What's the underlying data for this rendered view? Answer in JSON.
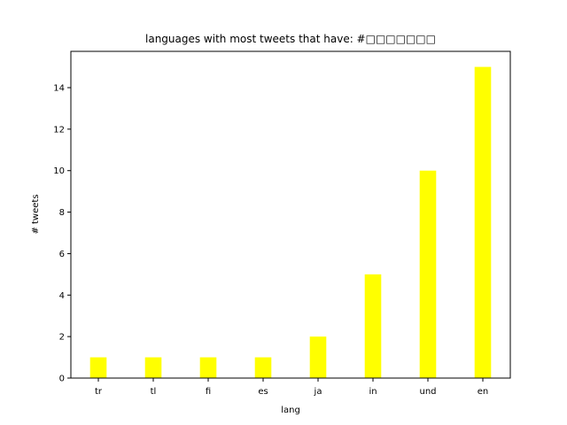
{
  "chart_data": {
    "type": "bar",
    "title": "languages with most tweets that have: #□□□□□□□",
    "xlabel": "lang",
    "ylabel": "# tweets",
    "categories": [
      "tr",
      "tl",
      "fi",
      "es",
      "ja",
      "in",
      "und",
      "en"
    ],
    "values": [
      1,
      1,
      1,
      1,
      2,
      5,
      10,
      15
    ],
    "ylim": [
      0,
      15.75
    ],
    "yticks": [
      "0",
      "2",
      "4",
      "6",
      "8",
      "10",
      "12",
      "14"
    ],
    "bar_color": "#ffff00",
    "grid": false,
    "legend": "none"
  }
}
